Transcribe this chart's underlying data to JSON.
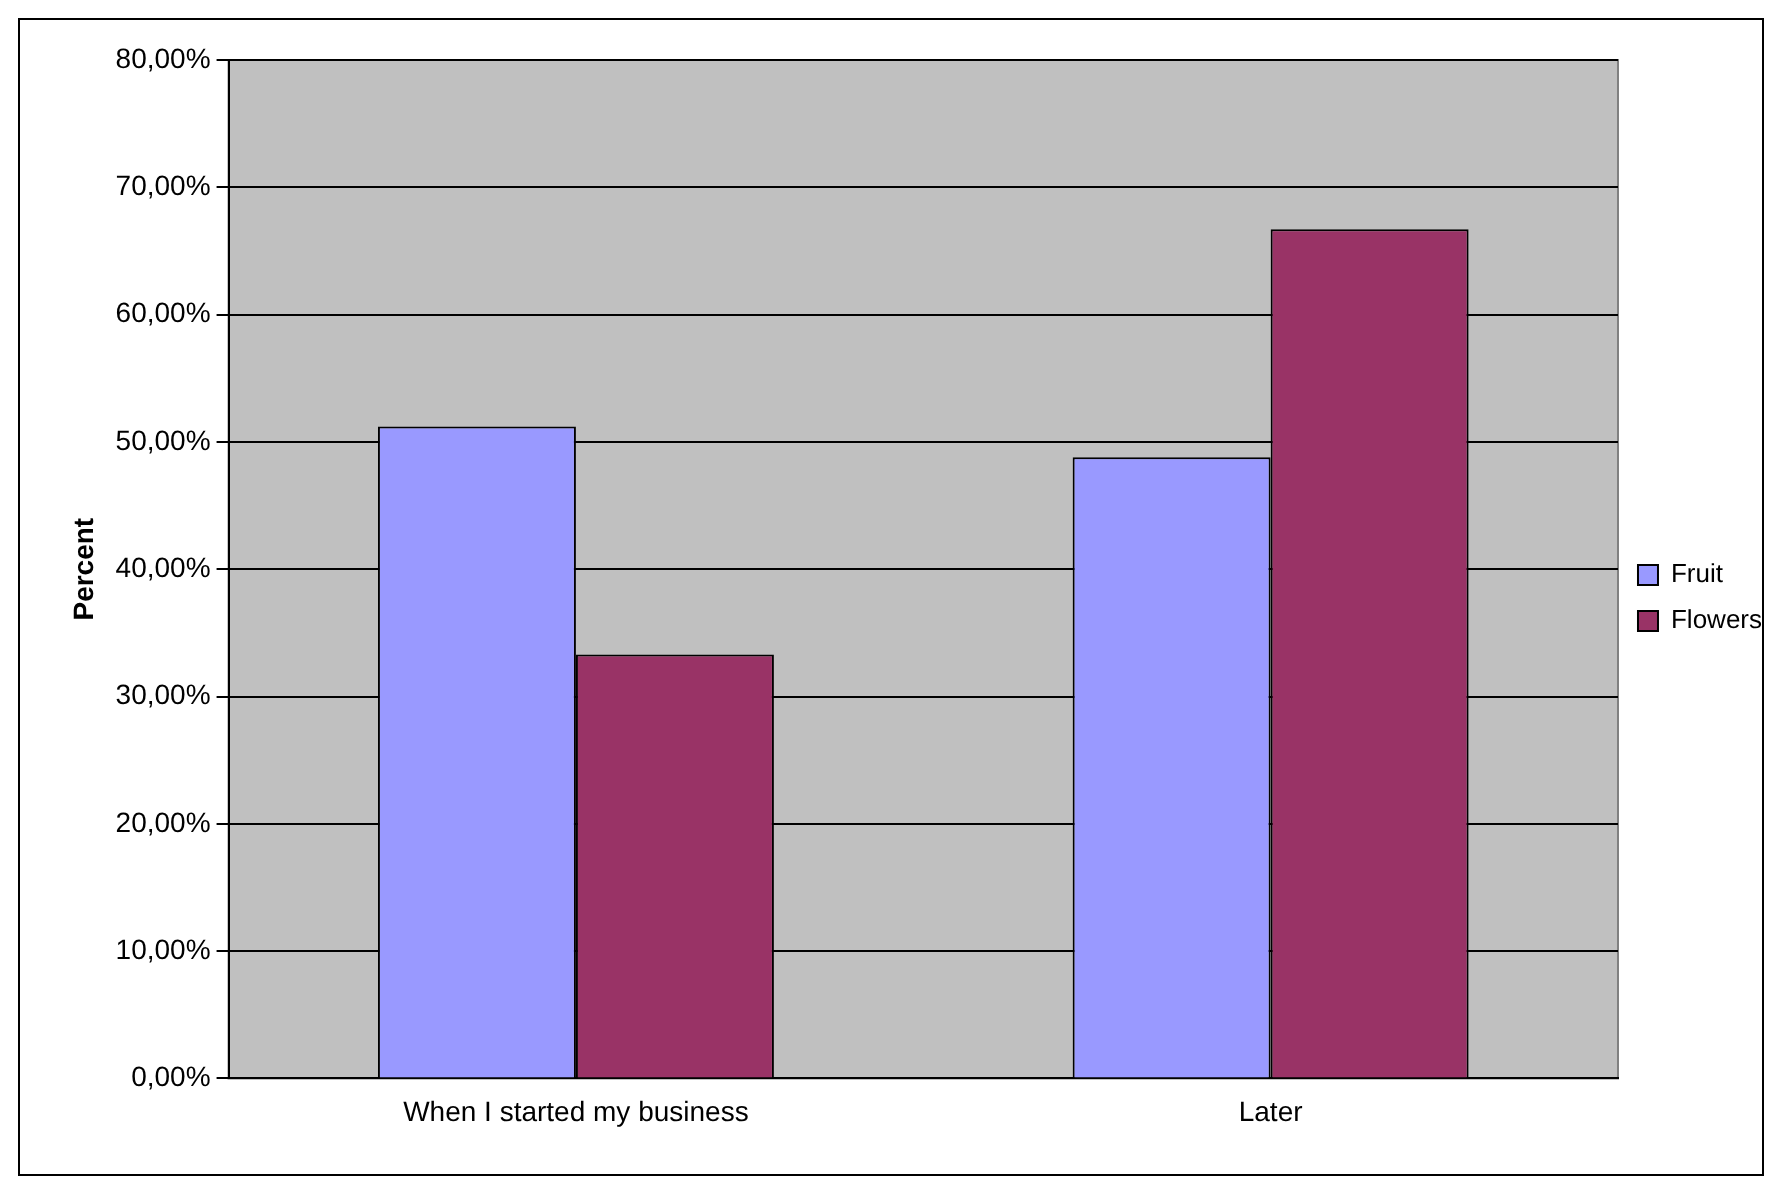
{
  "chart_data": {
    "type": "bar",
    "ylabel": "Percent",
    "categories": [
      "When I started my business",
      "Later"
    ],
    "series": [
      {
        "name": "Fruit",
        "color": "#9999ff",
        "values": [
          51.2,
          48.8
        ]
      },
      {
        "name": "Flowers",
        "color": "#993366",
        "values": [
          33.3,
          66.7
        ]
      }
    ],
    "ylim": [
      0,
      80
    ],
    "yticks": [
      {
        "value": 0,
        "label": "0,00%"
      },
      {
        "value": 10,
        "label": "10,00%"
      },
      {
        "value": 20,
        "label": "20,00%"
      },
      {
        "value": 30,
        "label": "30,00%"
      },
      {
        "value": 40,
        "label": "40,00%"
      },
      {
        "value": 50,
        "label": "50,00%"
      },
      {
        "value": 60,
        "label": "60,00%"
      },
      {
        "value": 70,
        "label": "70,00%"
      },
      {
        "value": 80,
        "label": "80,00%"
      }
    ],
    "grid": "y",
    "legend": "right"
  }
}
